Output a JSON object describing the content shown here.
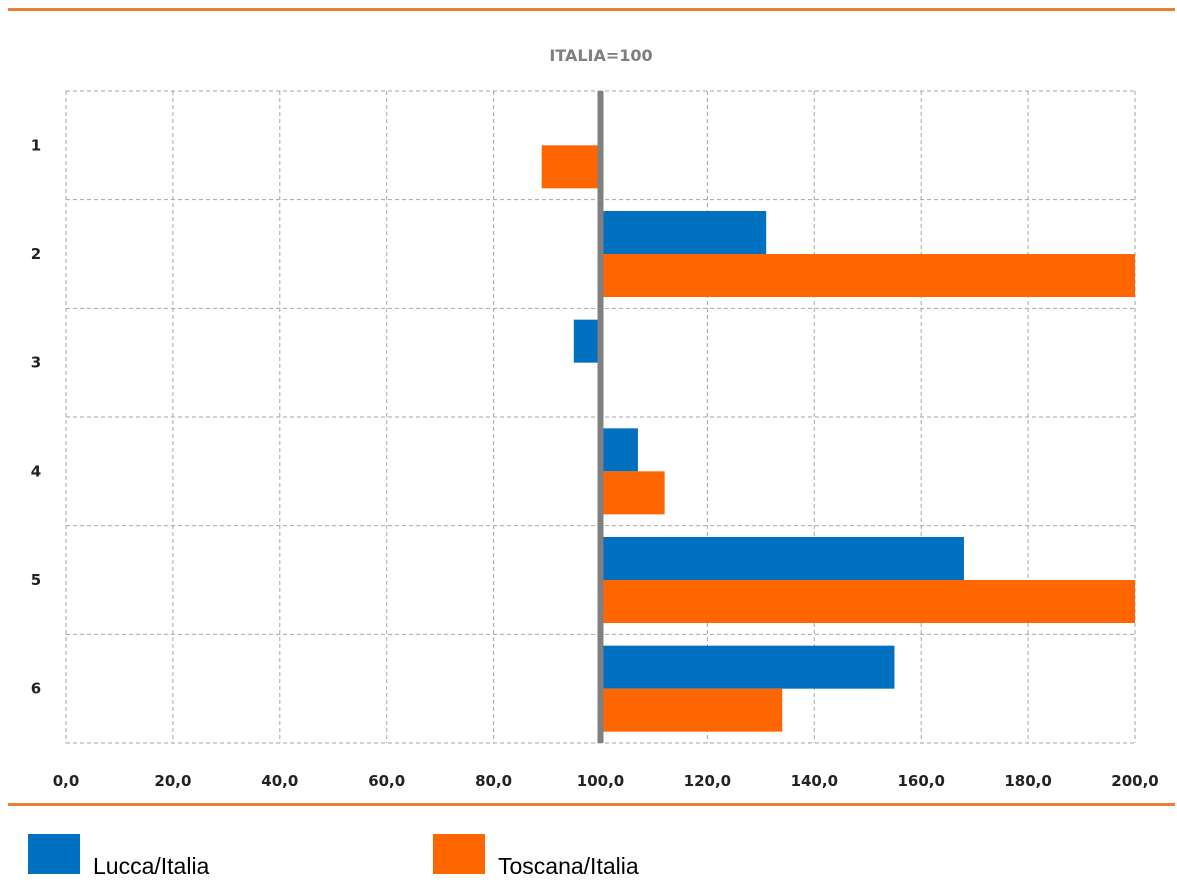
{
  "chart_data": {
    "type": "bar",
    "orientation": "horizontal",
    "title": "ITALIA=100",
    "reference_value": 100,
    "categories": [
      "1",
      "2",
      "3",
      "4",
      "5",
      "6"
    ],
    "x_ticks": [
      "0,0",
      "20,0",
      "40,0",
      "60,0",
      "80,0",
      "100,0",
      "120,0",
      "140,0",
      "160,0",
      "180,0",
      "200,0"
    ],
    "xlim": [
      0,
      200
    ],
    "grid": true,
    "legend_position": "bottom",
    "series": [
      {
        "name": "Lucca/Italia",
        "color": "#0070c0",
        "values": [
          null,
          131,
          95,
          107,
          168,
          155
        ]
      },
      {
        "name": "Toscana/Italia",
        "color": "#ff6600",
        "values": [
          89,
          200,
          100,
          112,
          200,
          134
        ]
      }
    ]
  },
  "legend": {
    "lucca_label": "Lucca/Italia",
    "toscana_label": "Toscana/Italia"
  }
}
